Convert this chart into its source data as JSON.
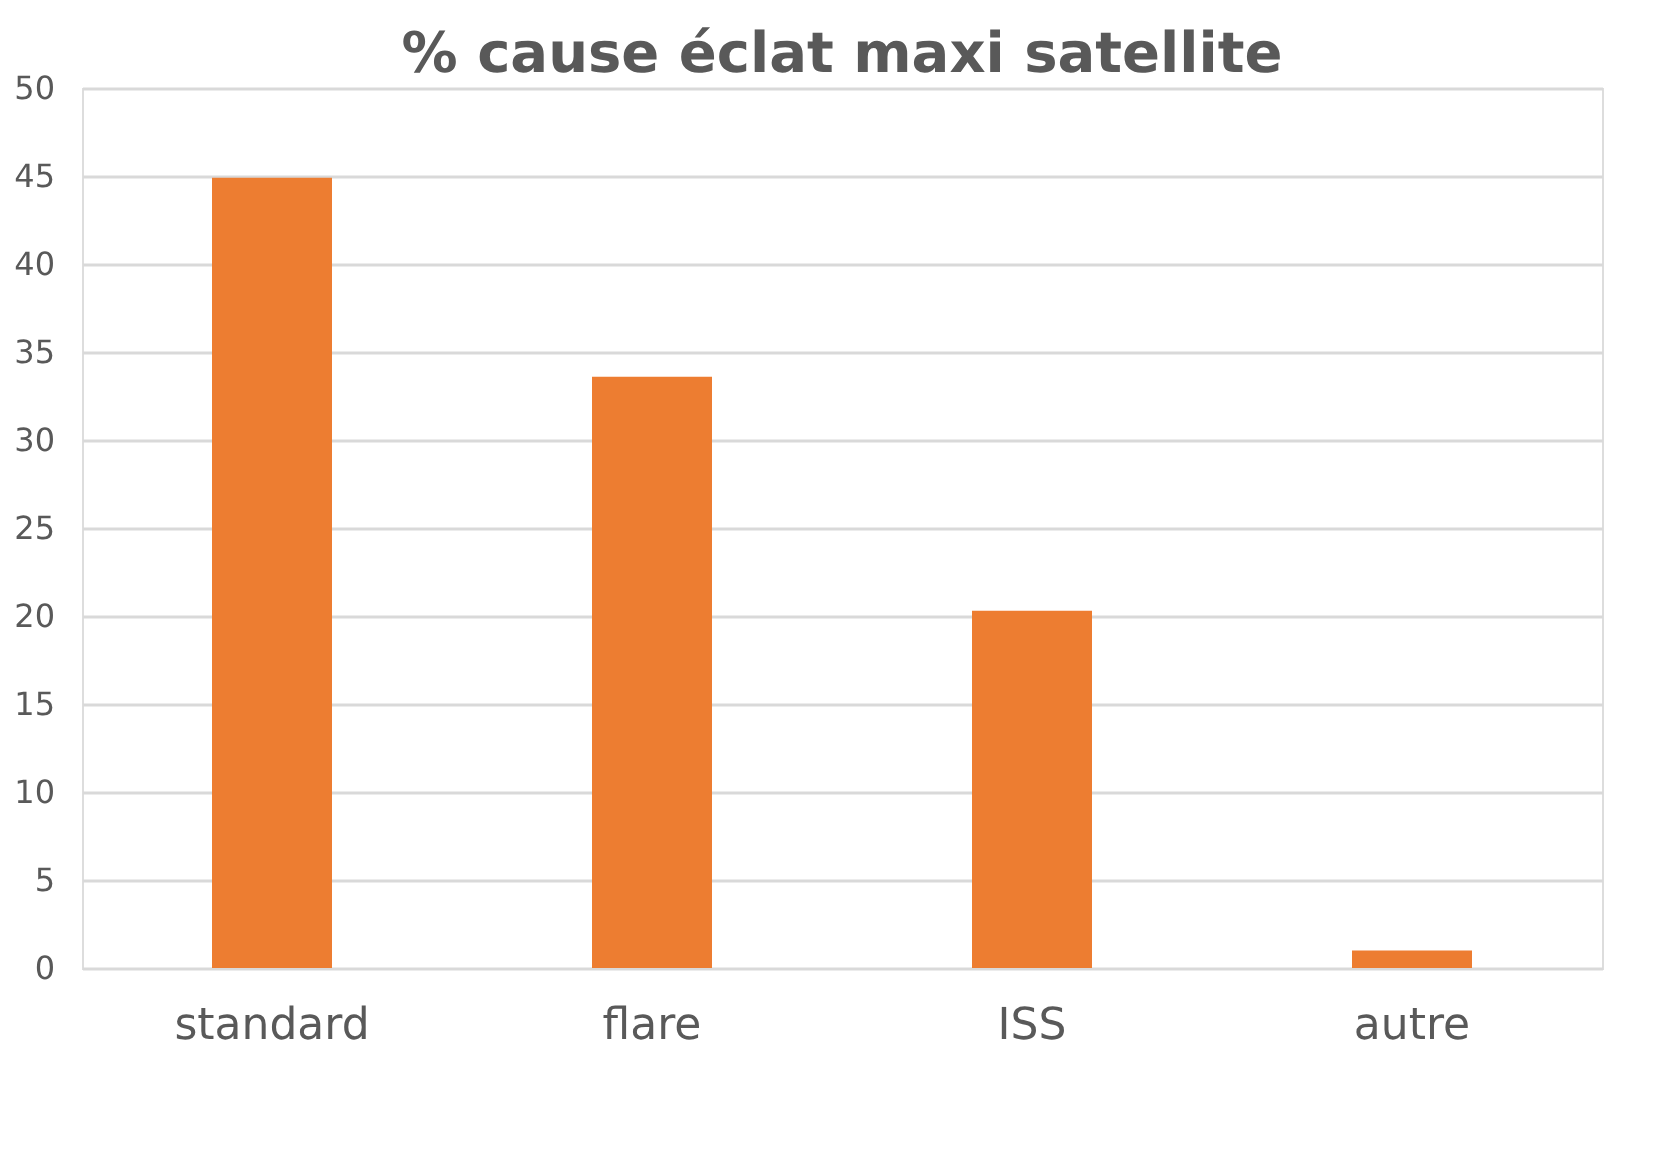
{
  "chart_data": {
    "type": "bar",
    "title": "% cause éclat maxi satellite",
    "categories": [
      "standard",
      "flare",
      "ISS",
      "autre"
    ],
    "values": [
      44.9,
      33.6,
      20.3,
      1.0
    ],
    "color": "#ed7d31",
    "ylim": [
      0,
      50
    ],
    "yticks": [
      0,
      5,
      10,
      15,
      20,
      25,
      30,
      35,
      40,
      45,
      50
    ],
    "grid": "y"
  }
}
